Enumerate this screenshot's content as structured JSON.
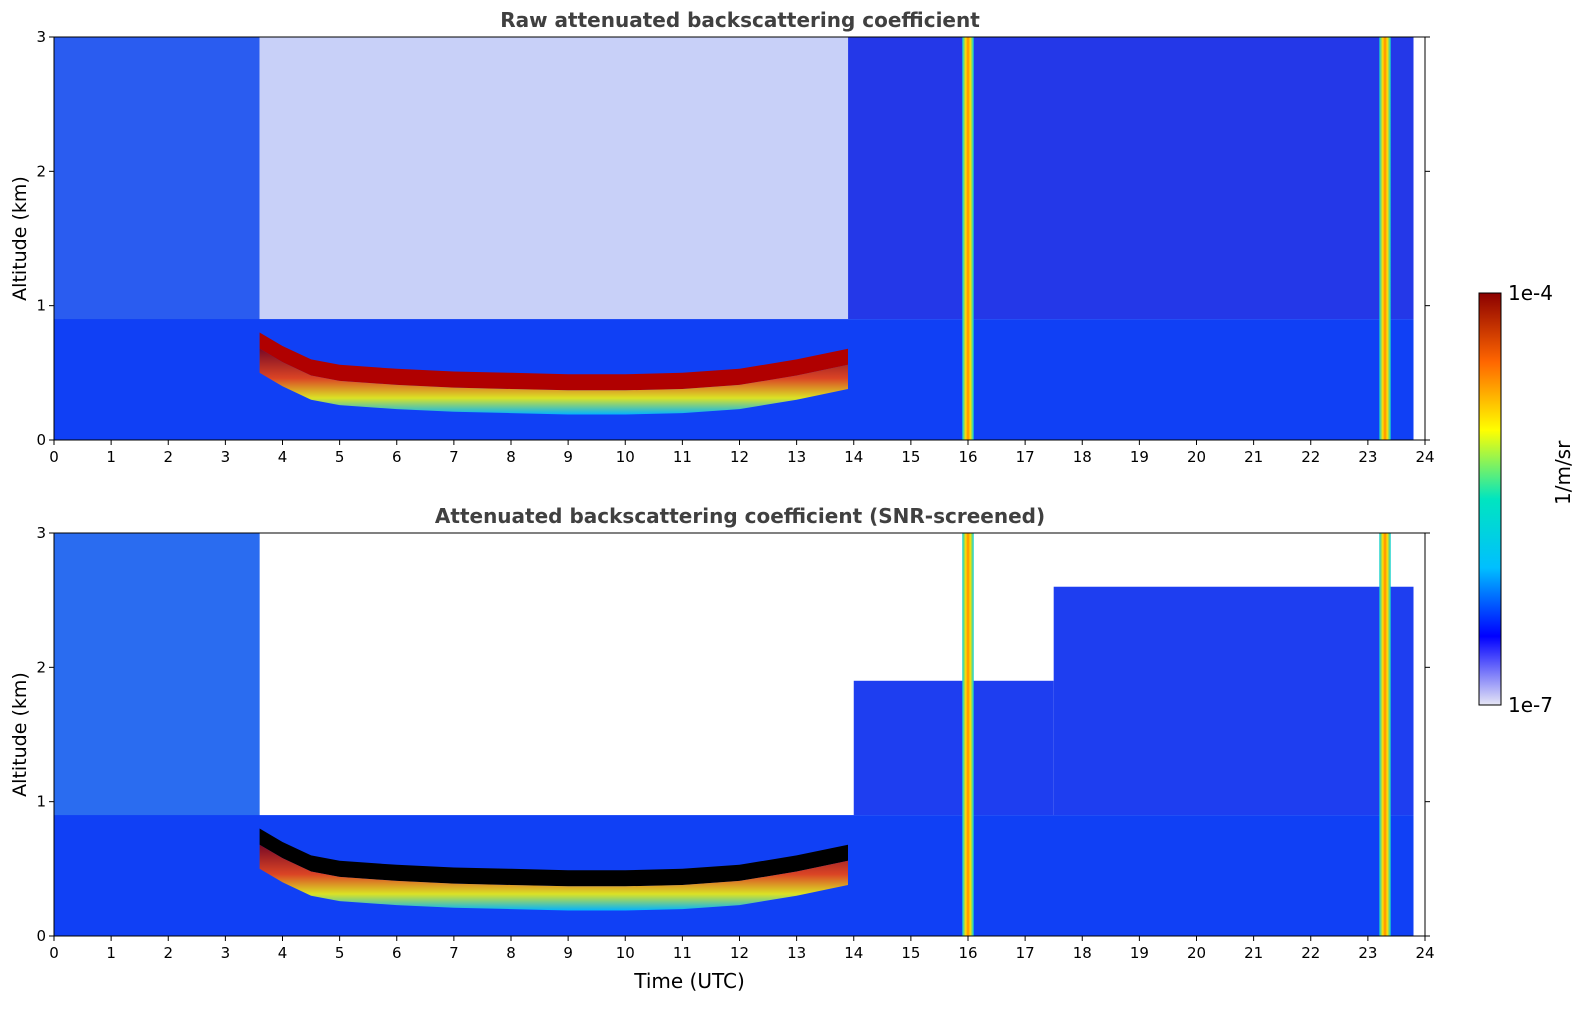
{
  "chart_data": [
    {
      "type": "heatmap",
      "title": "Raw attenuated backscattering coefficient",
      "xlabel": "",
      "ylabel": "Altitude (km)",
      "xlim": [
        0,
        24
      ],
      "ylim": [
        0,
        3
      ],
      "x_ticks": [
        "0",
        "1",
        "2",
        "3",
        "4",
        "5",
        "6",
        "7",
        "8",
        "9",
        "10",
        "11",
        "12",
        "13",
        "14",
        "15",
        "16",
        "17",
        "18",
        "19",
        "20",
        "21",
        "22",
        "23",
        "24"
      ],
      "y_ticks": [
        "0",
        "1",
        "2",
        "3"
      ],
      "colormap": "jet, log scale",
      "screened": false,
      "layer_top_profile": {
        "time_utc": [
          3.6,
          4.0,
          4.5,
          5.0,
          6.0,
          7.0,
          8.0,
          9.0,
          10.0,
          11.0,
          12.0,
          13.0,
          13.9
        ],
        "altitude_km": [
          0.8,
          0.7,
          0.6,
          0.56,
          0.53,
          0.51,
          0.5,
          0.49,
          0.49,
          0.5,
          0.53,
          0.6,
          0.68
        ]
      },
      "vertical_features_utc": [
        16.0,
        23.3
      ]
    },
    {
      "type": "heatmap",
      "title": "Attenuated backscattering coefficient (SNR-screened)",
      "xlabel": "Time (UTC)",
      "ylabel": "Altitude (km)",
      "xlim": [
        0,
        24
      ],
      "ylim": [
        0,
        3
      ],
      "x_ticks": [
        "0",
        "1",
        "2",
        "3",
        "4",
        "5",
        "6",
        "7",
        "8",
        "9",
        "10",
        "11",
        "12",
        "13",
        "14",
        "15",
        "16",
        "17",
        "18",
        "19",
        "20",
        "21",
        "22",
        "23",
        "24"
      ],
      "y_ticks": [
        "0",
        "1",
        "2",
        "3"
      ],
      "colormap": "jet, log scale",
      "screened": true,
      "layer_top_profile": {
        "time_utc": [
          3.6,
          4.0,
          4.5,
          5.0,
          6.0,
          7.0,
          8.0,
          9.0,
          10.0,
          11.0,
          12.0,
          13.0,
          13.9
        ],
        "altitude_km": [
          0.8,
          0.7,
          0.6,
          0.56,
          0.53,
          0.51,
          0.5,
          0.49,
          0.49,
          0.5,
          0.53,
          0.6,
          0.68
        ]
      },
      "vertical_features_utc": [
        16.0,
        23.3
      ]
    }
  ],
  "colorbar": {
    "max_label": "1e-4",
    "min_label": "1e-7",
    "unit_label": "1/m/sr",
    "colors": [
      "#e6e6f5",
      "#0000ff",
      "#00bfff",
      "#00e5c0",
      "#ffff00",
      "#ff6600",
      "#8b0000"
    ]
  }
}
